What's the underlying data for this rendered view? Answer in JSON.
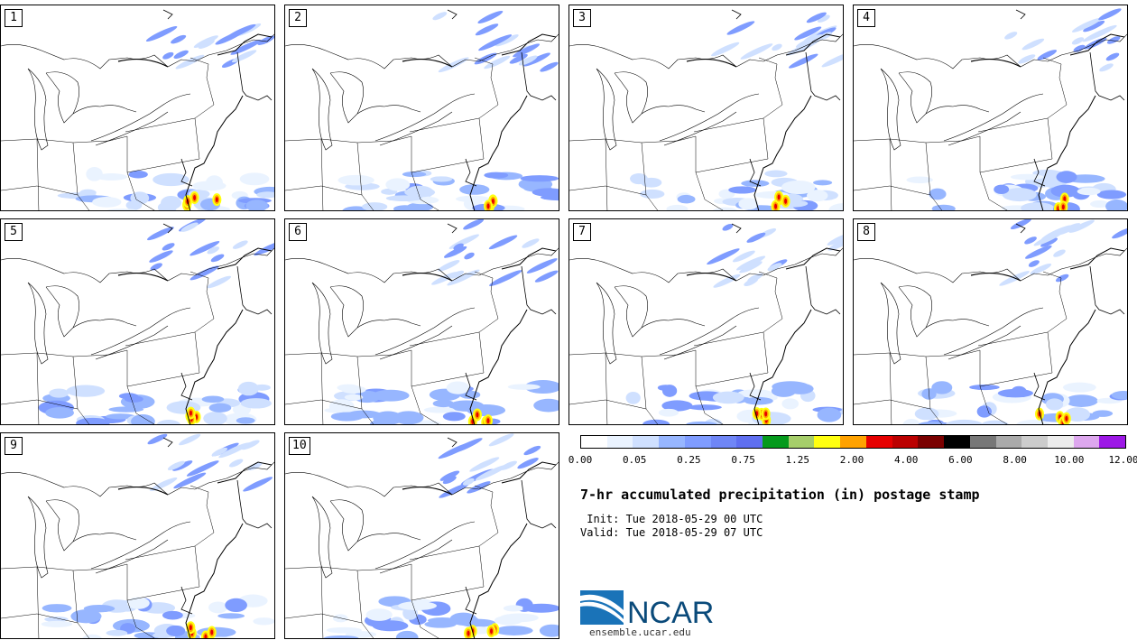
{
  "panels": [
    {
      "label": "1",
      "seed": 11
    },
    {
      "label": "2",
      "seed": 23
    },
    {
      "label": "3",
      "seed": 37
    },
    {
      "label": "4",
      "seed": 41
    },
    {
      "label": "5",
      "seed": 53
    },
    {
      "label": "6",
      "seed": 67
    },
    {
      "label": "7",
      "seed": 71
    },
    {
      "label": "8",
      "seed": 83
    },
    {
      "label": "9",
      "seed": 97
    },
    {
      "label": "10",
      "seed": 101
    }
  ],
  "colorbar": {
    "colors": [
      "#ffffff",
      "#eaf3ff",
      "#cfe0ff",
      "#97b6ff",
      "#7f9cff",
      "#6f86f6",
      "#5f6ff0",
      "#059a1d",
      "#a6ce6a",
      "#ffff10",
      "#ffa200",
      "#e60000",
      "#bb0000",
      "#7a0000",
      "#000000",
      "#777777",
      "#aaaaaa",
      "#cccccc",
      "#ececec",
      "#dda7ee",
      "#9d18e6"
    ],
    "ticks": [
      "0.00",
      "0.05",
      "0.25",
      "0.75",
      "1.25",
      "2.00",
      "4.00",
      "6.00",
      "8.00",
      "10.00",
      "12.00"
    ]
  },
  "title": "7-hr accumulated precipitation (in) postage stamp",
  "init": " Init: Tue 2018-05-29 00 UTC",
  "valid": "Valid: Tue 2018-05-29 07 UTC",
  "logo": {
    "brand": "NCAR",
    "url": "ensemble.ucar.edu",
    "color": "#0a4a7a"
  }
}
